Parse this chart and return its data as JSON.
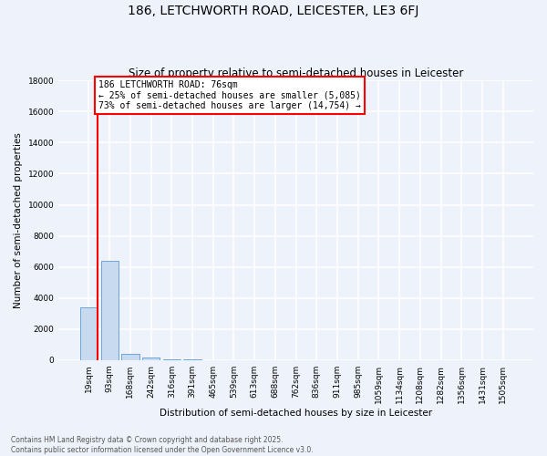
{
  "title": "186, LETCHWORTH ROAD, LEICESTER, LE3 6FJ",
  "subtitle": "Size of property relative to semi-detached houses in Leicester",
  "xlabel": "Distribution of semi-detached houses by size in Leicester",
  "ylabel": "Number of semi-detached properties",
  "bin_labels": [
    "19sqm",
    "93sqm",
    "168sqm",
    "242sqm",
    "316sqm",
    "391sqm",
    "465sqm",
    "539sqm",
    "613sqm",
    "688sqm",
    "762sqm",
    "836sqm",
    "911sqm",
    "985sqm",
    "1059sqm",
    "1134sqm",
    "1208sqm",
    "1282sqm",
    "1356sqm",
    "1431sqm",
    "1505sqm"
  ],
  "bar_heights": [
    3400,
    6400,
    420,
    160,
    60,
    30,
    15,
    10,
    6,
    4,
    3,
    2,
    2,
    1,
    1,
    1,
    1,
    0,
    0,
    0,
    0
  ],
  "bar_color": "#c8daf0",
  "bar_edgecolor": "#5b9bd5",
  "ylim": [
    0,
    18000
  ],
  "yticks": [
    0,
    2000,
    4000,
    6000,
    8000,
    10000,
    12000,
    14000,
    16000,
    18000
  ],
  "vline_color": "red",
  "annotation_text": "186 LETCHWORTH ROAD: 76sqm\n← 25% of semi-detached houses are smaller (5,085)\n73% of semi-detached houses are larger (14,754) →",
  "annotation_boxcolor": "white",
  "annotation_edgecolor": "red",
  "footer": "Contains HM Land Registry data © Crown copyright and database right 2025.\nContains public sector information licensed under the Open Government Licence v3.0.",
  "background_color": "#eef2fa",
  "grid_color": "white",
  "title_fontsize": 10,
  "subtitle_fontsize": 8.5,
  "tick_fontsize": 6.5,
  "ylabel_fontsize": 7.5,
  "xlabel_fontsize": 7.5,
  "footer_fontsize": 5.5,
  "annotation_fontsize": 7
}
